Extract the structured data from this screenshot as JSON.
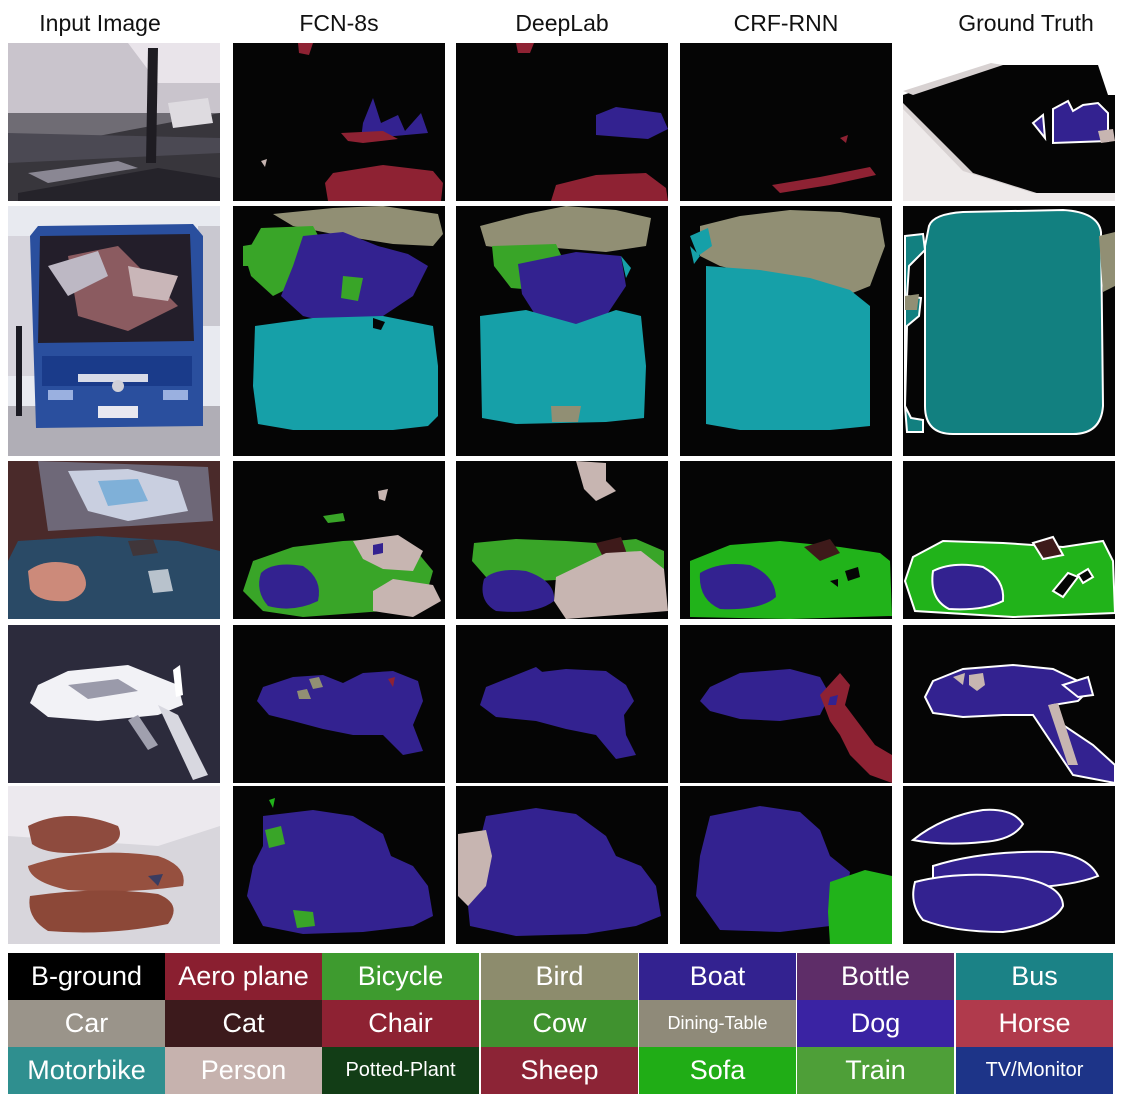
{
  "columns": [
    "Input Image",
    "FCN-8s",
    "DeepLab",
    "CRF-RNN",
    "Ground Truth"
  ],
  "palette": {
    "background": "#050505",
    "aeroplane": "#8e2233",
    "bicycle": "#39a528",
    "bird": "#918f74",
    "boat": "#332290",
    "bus": "#128080",
    "bus_cyan": "#16a0a8",
    "car": "#9a968a",
    "cat": "#3e1a1a",
    "chair": "#8c2331",
    "cow": "#42922e",
    "dog": "#3a23a6",
    "horse": "#b13c4b",
    "person": "#c7b5b1",
    "sofa": "#21b31a",
    "train": "#52a336",
    "tvmonitor": "#1d2f88"
  },
  "legend": [
    {
      "label": "B-ground",
      "color": "#000000"
    },
    {
      "label": "Aero plane",
      "color": "#8a1f30"
    },
    {
      "label": "Bicycle",
      "color": "#3e9b2f"
    },
    {
      "label": "Bird",
      "color": "#8d8c6d"
    },
    {
      "label": "Boat",
      "color": "#332290"
    },
    {
      "label": "Bottle",
      "color": "#5e2d68"
    },
    {
      "label": "Bus",
      "color": "#1b8286"
    },
    {
      "label": "Car",
      "color": "#9a948a"
    },
    {
      "label": "Cat",
      "color": "#3c1a1c"
    },
    {
      "label": "Chair",
      "color": "#8e2233"
    },
    {
      "label": "Cow",
      "color": "#40922f"
    },
    {
      "label": "Dining-Table",
      "color": "#8f8a79"
    },
    {
      "label": "Dog",
      "color": "#3a23a3"
    },
    {
      "label": "Horse",
      "color": "#b03a4c"
    },
    {
      "label": "Motorbike",
      "color": "#2f8f8f"
    },
    {
      "label": "Person",
      "color": "#c6b2ae"
    },
    {
      "label": "Potted-Plant",
      "color": "#123d16"
    },
    {
      "label": "Sheep",
      "color": "#8c2436"
    },
    {
      "label": "Sofa",
      "color": "#20ad16"
    },
    {
      "label": "Train",
      "color": "#4e9f38"
    },
    {
      "label": "TV/Monitor",
      "color": "#1d3488"
    }
  ]
}
